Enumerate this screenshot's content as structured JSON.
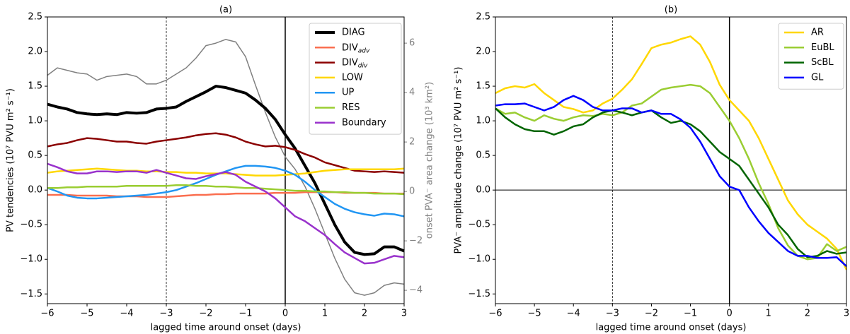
{
  "chart_data": [
    {
      "type": "line",
      "title": "(a)",
      "xlabel": "lagged time around onset (days)",
      "ylabel": "PV tendencies (10⁷ PVU m² s⁻¹)",
      "y2label": "onset PVA⁻ area change (10³ km²)",
      "y2color": "#808080",
      "x": [
        -6,
        -5.75,
        -5.5,
        -5.25,
        -5,
        -4.75,
        -4.5,
        -4.25,
        -4,
        -3.75,
        -3.5,
        -3.25,
        -3,
        -2.75,
        -2.5,
        -2.25,
        -2,
        -1.75,
        -1.5,
        -1.25,
        -1,
        -0.75,
        -0.5,
        -0.25,
        0,
        0.25,
        0.5,
        0.75,
        1,
        1.25,
        1.5,
        1.75,
        2,
        2.25,
        2.5,
        2.75,
        3
      ],
      "xlim": [
        -6,
        3
      ],
      "xticks": [
        {
          "value": -6,
          "label": "−6"
        },
        {
          "value": -5,
          "label": "−5"
        },
        {
          "value": -4,
          "label": "−4"
        },
        {
          "value": -3,
          "label": "−3"
        },
        {
          "value": -2,
          "label": "−2"
        },
        {
          "value": -1,
          "label": "−1"
        },
        0,
        1,
        2,
        3
      ],
      "ylim": [
        -1.64,
        2.5
      ],
      "yticks": [
        {
          "value": -1.5,
          "label": "−1.5"
        },
        {
          "value": -1,
          "label": "−1.0"
        },
        {
          "value": -0.5,
          "label": "−0.5"
        },
        {
          "value": 0,
          "label": "0.0"
        },
        {
          "value": 0.5,
          "label": "0.5"
        },
        {
          "value": 1,
          "label": "1.0"
        },
        {
          "value": 1.5,
          "label": "1.5"
        },
        {
          "value": 2,
          "label": "2.0"
        },
        {
          "value": 2.5,
          "label": "2.5"
        }
      ],
      "y2lim": [
        -4.54,
        7.06
      ],
      "y2ticks": [
        {
          "value": -4,
          "label": "−4"
        },
        {
          "value": -2,
          "label": "−2"
        },
        0,
        2,
        4,
        6
      ],
      "legend": "upper right",
      "vlines": [
        {
          "x": 0,
          "style": "solid"
        },
        {
          "x": -3,
          "style": "dashed"
        }
      ],
      "series": [
        {
          "name": "DIAG",
          "color": "#000000",
          "width": 4,
          "values": [
            1.24,
            1.2,
            1.17,
            1.12,
            1.1,
            1.09,
            1.1,
            1.09,
            1.12,
            1.11,
            1.12,
            1.17,
            1.18,
            1.2,
            1.28,
            1.35,
            1.42,
            1.5,
            1.48,
            1.44,
            1.4,
            1.3,
            1.18,
            1.02,
            0.8,
            0.6,
            0.35,
            0.1,
            -0.2,
            -0.5,
            -0.75,
            -0.9,
            -0.93,
            -0.92,
            -0.82,
            -0.82,
            -0.88
          ]
        },
        {
          "name": "DIVadv",
          "color": "#fa6e4f",
          "width": 2.5,
          "values": [
            -0.07,
            -0.07,
            -0.07,
            -0.08,
            -0.08,
            -0.08,
            -0.08,
            -0.09,
            -0.09,
            -0.09,
            -0.1,
            -0.1,
            -0.1,
            -0.09,
            -0.08,
            -0.07,
            -0.07,
            -0.06,
            -0.06,
            -0.05,
            -0.05,
            -0.05,
            -0.05,
            -0.04,
            -0.04,
            -0.04,
            -0.03,
            -0.03,
            -0.03,
            -0.03,
            -0.04,
            -0.04,
            -0.04,
            -0.04,
            -0.05,
            -0.05,
            -0.05
          ]
        },
        {
          "name": "DIVdiv",
          "color": "#8b0000",
          "width": 2.5,
          "values": [
            0.63,
            0.66,
            0.68,
            0.72,
            0.75,
            0.74,
            0.72,
            0.7,
            0.7,
            0.68,
            0.67,
            0.7,
            0.72,
            0.74,
            0.76,
            0.79,
            0.81,
            0.82,
            0.8,
            0.76,
            0.7,
            0.66,
            0.63,
            0.64,
            0.62,
            0.58,
            0.52,
            0.47,
            0.4,
            0.36,
            0.32,
            0.28,
            0.27,
            0.26,
            0.27,
            0.26,
            0.25
          ]
        },
        {
          "name": "LOW",
          "color": "#ffd700",
          "width": 2.5,
          "values": [
            0.25,
            0.27,
            0.28,
            0.29,
            0.3,
            0.31,
            0.3,
            0.29,
            0.28,
            0.28,
            0.27,
            0.27,
            0.26,
            0.26,
            0.25,
            0.25,
            0.24,
            0.24,
            0.24,
            0.23,
            0.22,
            0.21,
            0.21,
            0.21,
            0.22,
            0.23,
            0.24,
            0.26,
            0.28,
            0.29,
            0.3,
            0.3,
            0.3,
            0.3,
            0.3,
            0.3,
            0.31
          ]
        },
        {
          "name": "UP",
          "color": "#2196f3",
          "width": 2.5,
          "values": [
            0.03,
            -0.02,
            -0.08,
            -0.11,
            -0.12,
            -0.12,
            -0.11,
            -0.1,
            -0.09,
            -0.08,
            -0.07,
            -0.05,
            -0.03,
            0,
            0.05,
            0.1,
            0.16,
            0.22,
            0.27,
            0.32,
            0.35,
            0.35,
            0.34,
            0.32,
            0.28,
            0.22,
            0.12,
            0,
            -0.1,
            -0.2,
            -0.27,
            -0.32,
            -0.35,
            -0.37,
            -0.34,
            -0.35,
            -0.38
          ]
        },
        {
          "name": "RES",
          "color": "#9acd32",
          "width": 2.5,
          "values": [
            0.03,
            0.03,
            0.04,
            0.04,
            0.05,
            0.05,
            0.05,
            0.05,
            0.06,
            0.06,
            0.06,
            0.06,
            0.06,
            0.07,
            0.07,
            0.06,
            0.06,
            0.05,
            0.05,
            0.04,
            0.03,
            0.03,
            0.02,
            0.01,
            0,
            -0.01,
            -0.01,
            -0.02,
            -0.02,
            -0.03,
            -0.03,
            -0.04,
            -0.04,
            -0.05,
            -0.05,
            -0.05,
            -0.06
          ]
        },
        {
          "name": "Boundary",
          "color": "#9932cc",
          "width": 2.5,
          "values": [
            0.38,
            0.33,
            0.27,
            0.24,
            0.24,
            0.27,
            0.27,
            0.26,
            0.27,
            0.27,
            0.25,
            0.29,
            0.25,
            0.21,
            0.17,
            0.16,
            0.2,
            0.23,
            0.26,
            0.22,
            0.12,
            0.05,
            -0.02,
            -0.12,
            -0.25,
            -0.38,
            -0.45,
            -0.55,
            -0.65,
            -0.78,
            -0.9,
            -0.98,
            -1.06,
            -1.05,
            -1,
            -0.95,
            -0.97
          ]
        },
        {
          "color": "#808080",
          "width": 1.5,
          "axis": "y2",
          "values": [
            4.7,
            5,
            4.9,
            4.8,
            4.75,
            4.5,
            4.65,
            4.7,
            4.75,
            4.65,
            4.35,
            4.35,
            4.5,
            4.75,
            5,
            5.4,
            5.9,
            6,
            6.15,
            6.05,
            5.45,
            4.3,
            3.2,
            2.2,
            1.4,
            0.9,
            0.2,
            -0.7,
            -1.7,
            -2.7,
            -3.55,
            -4.1,
            -4.2,
            -4.1,
            -3.8,
            -3.7,
            -3.75
          ]
        }
      ]
    },
    {
      "type": "line",
      "title": "(b)",
      "xlabel": "lagged time around onset (days)",
      "ylabel": "PVA⁻ amplitude change (10⁷ PVU m² s⁻¹)",
      "x": [
        -6,
        -5.75,
        -5.5,
        -5.25,
        -5,
        -4.75,
        -4.5,
        -4.25,
        -4,
        -3.75,
        -3.5,
        -3.25,
        -3,
        -2.75,
        -2.5,
        -2.25,
        -2,
        -1.75,
        -1.5,
        -1.25,
        -1,
        -0.75,
        -0.5,
        -0.25,
        0,
        0.25,
        0.5,
        0.75,
        1,
        1.25,
        1.5,
        1.75,
        2,
        2.25,
        2.5,
        2.75,
        3
      ],
      "xlim": [
        -6,
        3
      ],
      "xticks": [
        {
          "value": -6,
          "label": "−6"
        },
        {
          "value": -5,
          "label": "−5"
        },
        {
          "value": -4,
          "label": "−4"
        },
        {
          "value": -3,
          "label": "−3"
        },
        {
          "value": -2,
          "label": "−2"
        },
        {
          "value": -1,
          "label": "−1"
        },
        0,
        1,
        2,
        3
      ],
      "ylim": [
        -1.64,
        2.5
      ],
      "yticks": [
        {
          "value": -1.5,
          "label": "−1.5"
        },
        {
          "value": -1,
          "label": "−1.0"
        },
        {
          "value": -0.5,
          "label": "−0.5"
        },
        {
          "value": 0,
          "label": "0.0"
        },
        {
          "value": 0.5,
          "label": "0.5"
        },
        {
          "value": 1,
          "label": "1.0"
        },
        {
          "value": 1.5,
          "label": "1.5"
        },
        {
          "value": 2,
          "label": "2.0"
        },
        {
          "value": 2.5,
          "label": "2.5"
        }
      ],
      "legend": "upper right",
      "vlines": [
        {
          "x": 0,
          "style": "solid"
        },
        {
          "x": -3,
          "style": "dashed"
        }
      ],
      "hlines": [
        0
      ],
      "series": [
        {
          "name": "AR",
          "color": "#ffd700",
          "width": 2.5,
          "values": [
            1.4,
            1.47,
            1.5,
            1.48,
            1.53,
            1.4,
            1.3,
            1.2,
            1.17,
            1.12,
            1.15,
            1.25,
            1.32,
            1.45,
            1.6,
            1.82,
            2.05,
            2.1,
            2.13,
            2.18,
            2.22,
            2.1,
            1.85,
            1.52,
            1.3,
            1.15,
            1,
            0.75,
            0.45,
            0.15,
            -0.15,
            -0.35,
            -0.5,
            -0.6,
            -0.7,
            -0.85,
            -1.15
          ]
        },
        {
          "name": "EuBL",
          "color": "#9acd32",
          "width": 2.5,
          "values": [
            1.18,
            1.1,
            1.12,
            1.05,
            1,
            1.08,
            1.03,
            1,
            1.05,
            1.08,
            1.07,
            1.1,
            1.08,
            1.12,
            1.22,
            1.25,
            1.35,
            1.45,
            1.48,
            1.5,
            1.52,
            1.5,
            1.4,
            1.2,
            1,
            0.75,
            0.45,
            0.1,
            -0.2,
            -0.55,
            -0.8,
            -0.95,
            -1,
            -0.98,
            -0.78,
            -0.88,
            -0.82
          ]
        },
        {
          "name": "ScBL",
          "color": "#006400",
          "width": 2.5,
          "values": [
            1.18,
            1.05,
            0.95,
            0.88,
            0.85,
            0.85,
            0.8,
            0.85,
            0.92,
            0.95,
            1.05,
            1.12,
            1.15,
            1.12,
            1.08,
            1.12,
            1.15,
            1.05,
            0.97,
            1,
            0.95,
            0.85,
            0.7,
            0.55,
            0.45,
            0.35,
            0.15,
            -0.05,
            -0.25,
            -0.5,
            -0.65,
            -0.85,
            -0.97,
            -0.95,
            -0.88,
            -0.92,
            -0.9
          ]
        },
        {
          "name": "GL",
          "color": "#0000ff",
          "width": 2.5,
          "values": [
            1.22,
            1.24,
            1.24,
            1.25,
            1.2,
            1.15,
            1.2,
            1.3,
            1.36,
            1.3,
            1.2,
            1.15,
            1.15,
            1.18,
            1.18,
            1.12,
            1.15,
            1.1,
            1.1,
            1.02,
            0.9,
            0.7,
            0.45,
            0.2,
            0.05,
            0,
            -0.25,
            -0.45,
            -0.62,
            -0.75,
            -0.88,
            -0.95,
            -0.95,
            -0.98,
            -0.98,
            -0.97,
            -1.1
          ]
        }
      ]
    }
  ]
}
